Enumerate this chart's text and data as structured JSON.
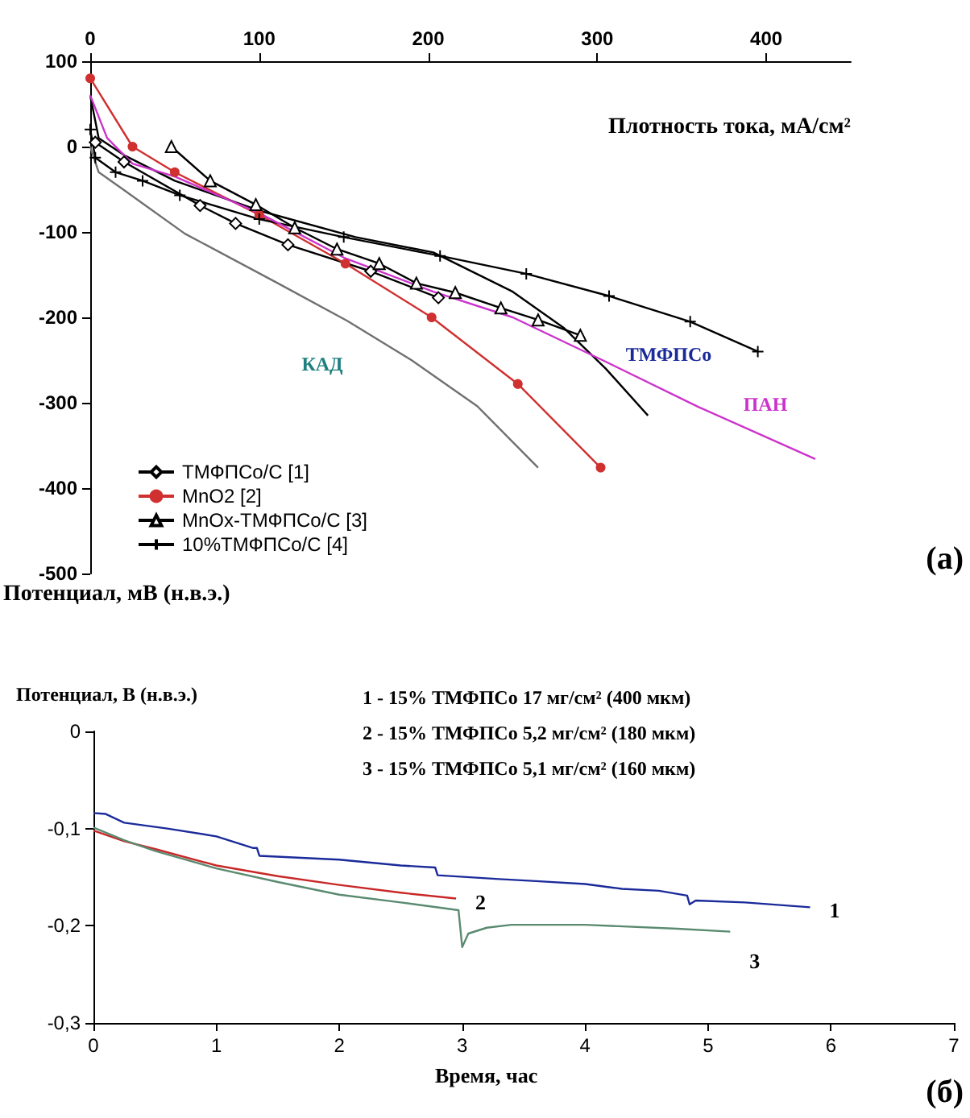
{
  "chart_data": [
    {
      "type": "line",
      "xlabel": "Плотность тока, мА/см²",
      "ylabel": "Потенциал, мВ (н.в.э.)",
      "xlim": [
        0,
        450
      ],
      "xticks": [
        0,
        100,
        200,
        300,
        400
      ],
      "ylim": [
        -500,
        100
      ],
      "yticks": [
        100,
        0,
        -100,
        -200,
        -300,
        -400,
        -500
      ],
      "grid": false,
      "legend": "bottom left",
      "line_style": "solid",
      "series": [
        {
          "name": "ТМФПСо/С [1]",
          "color": "#000000",
          "marker": "diamond",
          "x": [
            3,
            20,
            65,
            86,
            117,
            166,
            206
          ],
          "values": [
            5,
            -18,
            -69,
            -90,
            -115,
            -146,
            -177
          ]
        },
        {
          "name": "MnO2 [2]",
          "color": "#d03030",
          "marker": "circle",
          "x": [
            0,
            25,
            50,
            100,
            151,
            202,
            253,
            302
          ],
          "values": [
            80,
            0,
            -30,
            -80,
            -137,
            -200,
            -278,
            -376
          ]
        },
        {
          "name": "MnOx-ТМФПСо/С [3]",
          "color": "#000000",
          "marker": "triangle",
          "x": [
            48,
            71,
            98,
            121,
            146,
            171,
            193,
            216,
            243,
            265,
            290
          ],
          "values": [
            0,
            -40,
            -68,
            -95,
            -120,
            -137,
            -160,
            -171,
            -189,
            -203,
            -221
          ]
        },
        {
          "name": "10%ТМФПСо/С [4]",
          "color": "#000000",
          "marker": "cross",
          "x": [
            0,
            3,
            15,
            31,
            53,
            100,
            150,
            207,
            258,
            307,
            355,
            395
          ],
          "values": [
            20,
            -13,
            -30,
            -40,
            -57,
            -85,
            -106,
            -128,
            -149,
            -175,
            -205,
            -240
          ]
        },
        {
          "color": "#000000",
          "marker": "none",
          "x": [
            0,
            5,
            20,
            50,
            100,
            157,
            203,
            250,
            280,
            305,
            330
          ],
          "values": [
            60,
            10,
            -10,
            -40,
            -75,
            -106,
            -124,
            -170,
            -212,
            -260,
            -315
          ]
        },
        {
          "color": "#707070",
          "marker": "none",
          "x": [
            0,
            5,
            20,
            56,
            111,
            152,
            190,
            229,
            265
          ],
          "values": [
            0,
            -30,
            -51,
            -102,
            -160,
            -204,
            -250,
            -304,
            -376
          ]
        },
        {
          "color": "#cc33cc",
          "marker": "none",
          "x": [
            0,
            10,
            25,
            50,
            100,
            150,
            203,
            250,
            303,
            360,
            429
          ],
          "values": [
            60,
            10,
            -20,
            -35,
            -78,
            -130,
            -170,
            -200,
            -250,
            -305,
            -366
          ]
        }
      ],
      "annotations": [
        "(а)",
        "КАД",
        "ТМФПСо",
        "ПАН"
      ]
    },
    {
      "type": "line",
      "xlabel": "Время, час",
      "ylabel": "Потенциал, В (н.в.э.)",
      "xlim": [
        0,
        7
      ],
      "xticks": [
        0,
        1,
        2,
        3,
        4,
        5,
        6,
        7
      ],
      "ylim": [
        -0.3,
        0
      ],
      "yticks": [
        {
          "value": 0,
          "label": "0"
        },
        {
          "value": -0.1,
          "label": "-0,1"
        },
        {
          "value": -0.2,
          "label": "-0,2"
        },
        {
          "value": -0.3,
          "label": "-0,3"
        }
      ],
      "grid": false,
      "legend": false,
      "marker": "none",
      "line_style": "solid",
      "series": [
        {
          "name": "1",
          "color": "#1a2a9a",
          "x": [
            0,
            0.1,
            0.25,
            0.6,
            1.0,
            1.3,
            1.33,
            1.35,
            2.0,
            2.5,
            2.78,
            2.8,
            3.3,
            3.6,
            4.0,
            4.3,
            4.6,
            4.83,
            4.85,
            4.9,
            5.3,
            5.83
          ],
          "values": [
            -0.084,
            -0.085,
            -0.094,
            -0.1,
            -0.108,
            -0.12,
            -0.12,
            -0.128,
            -0.132,
            -0.138,
            -0.14,
            -0.148,
            -0.152,
            -0.154,
            -0.157,
            -0.162,
            -0.164,
            -0.169,
            -0.178,
            -0.174,
            -0.176,
            -0.181
          ]
        },
        {
          "name": "2",
          "color": "#c82828",
          "x": [
            0,
            0.25,
            0.5,
            1,
            1.5,
            2,
            2.5,
            2.95
          ],
          "values": [
            -0.102,
            -0.113,
            -0.121,
            -0.138,
            -0.149,
            -0.158,
            -0.166,
            -0.172
          ]
        },
        {
          "name": "3",
          "color": "#5a8a70",
          "x": [
            0,
            0.25,
            0.5,
            1,
            1.5,
            2,
            2.5,
            2.97,
            3.0,
            3.05,
            3.2,
            3.4,
            4.0,
            4.75,
            5.18
          ],
          "values": [
            -0.099,
            -0.112,
            -0.123,
            -0.141,
            -0.155,
            -0.168,
            -0.176,
            -0.184,
            -0.222,
            -0.208,
            -0.202,
            -0.199,
            -0.199,
            -0.203,
            -0.206
          ]
        }
      ],
      "annotations": [
        "1 - 15% ТМФПСо 17 мг/см² (400 мкм)",
        "2 - 15% ТМФПСо 5,2 мг/см² (180 мкм)",
        "3 - 15% ТМФПСо 5,1 мг/см² (160 мкм)",
        "(б)"
      ]
    }
  ]
}
